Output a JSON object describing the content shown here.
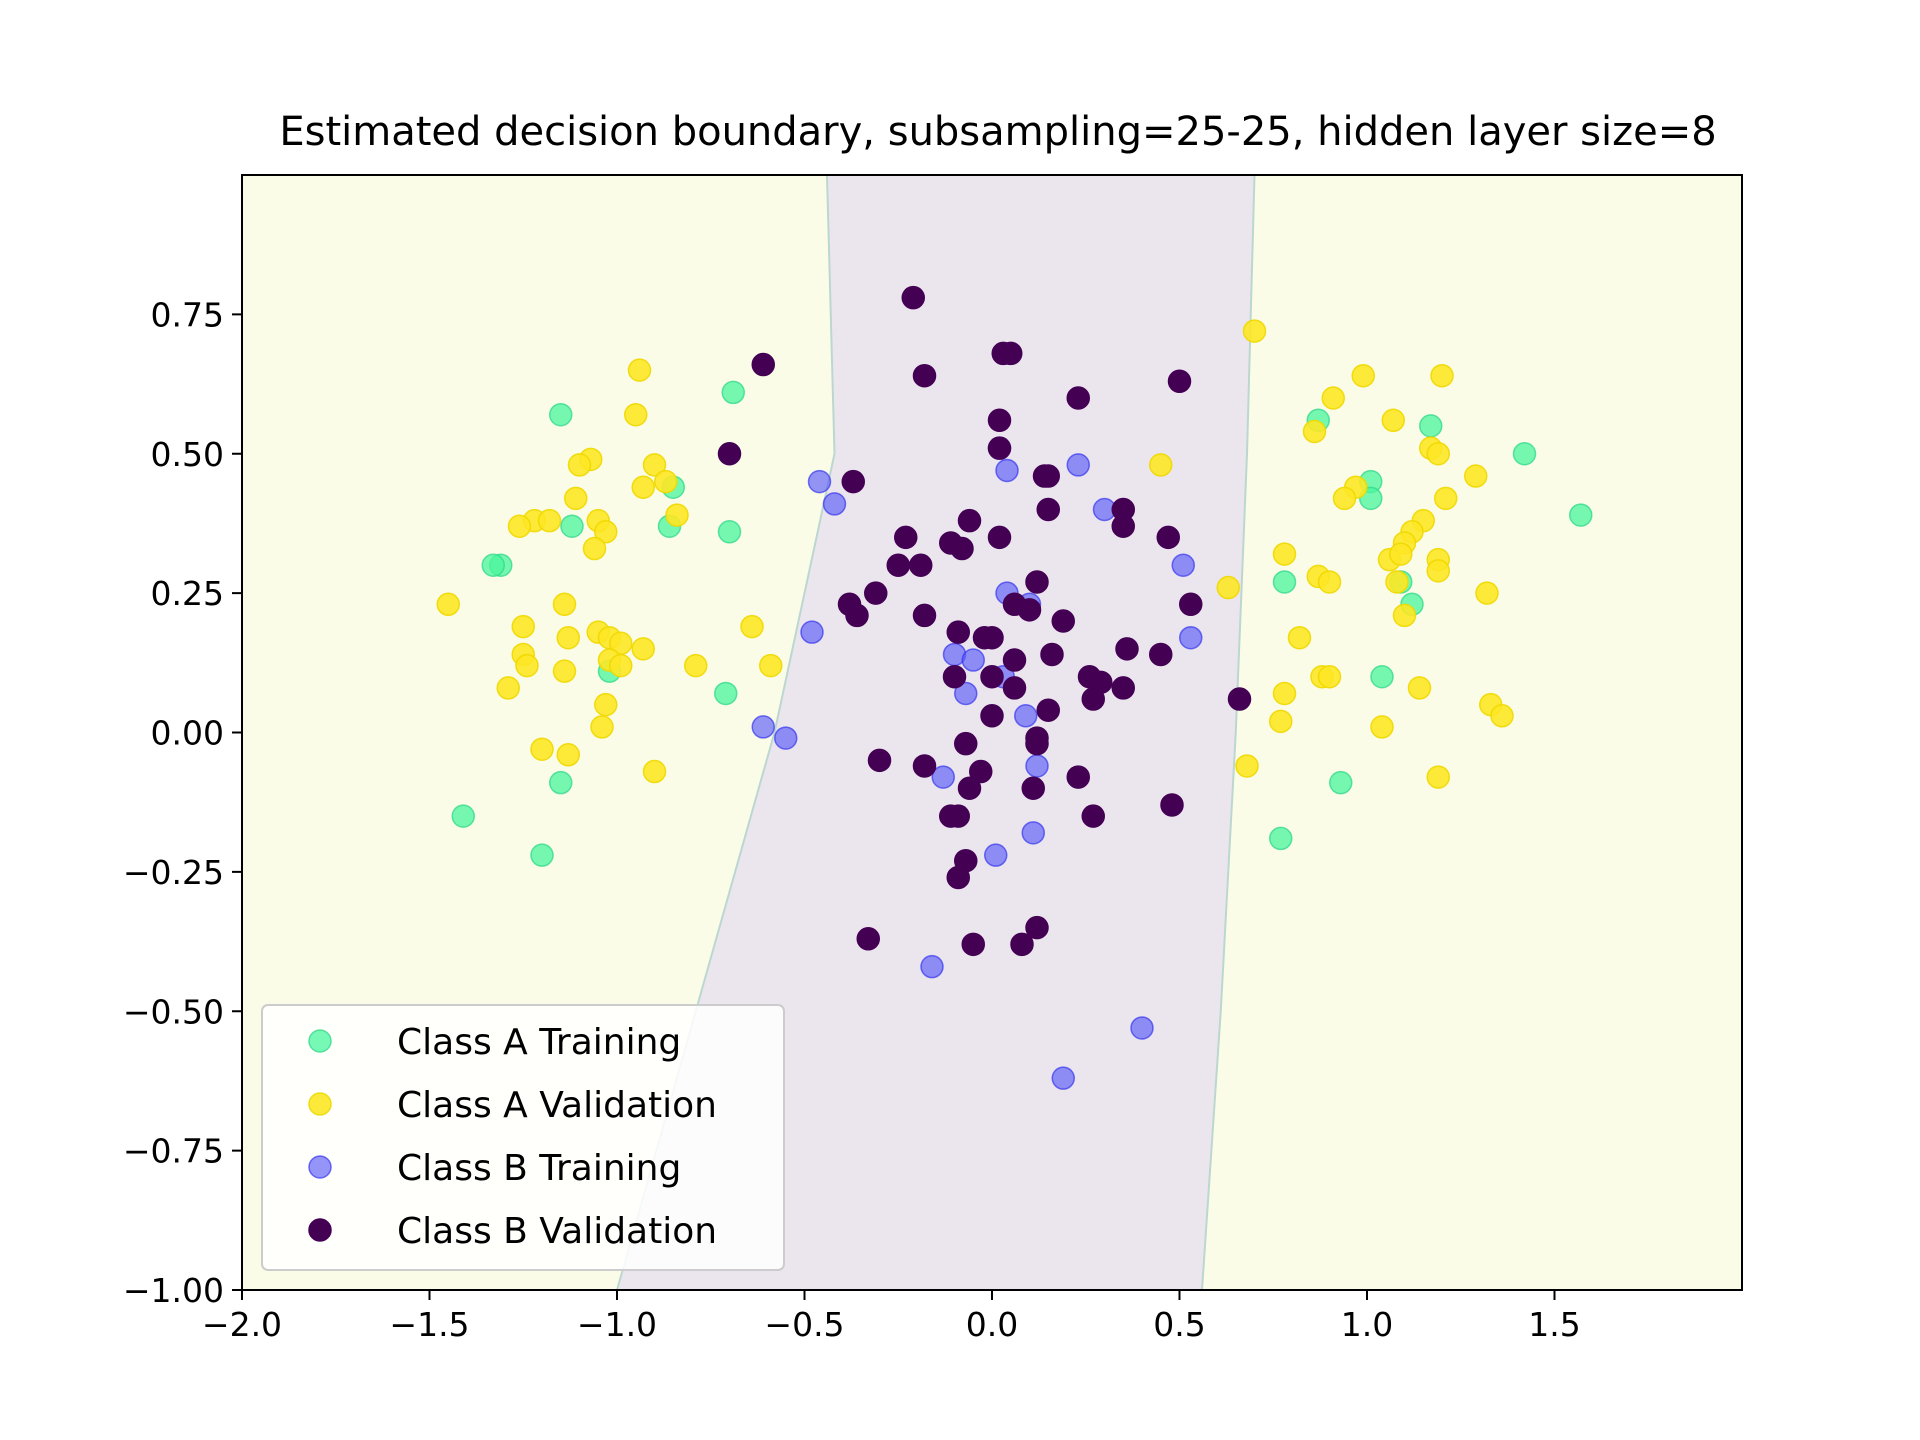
{
  "chart_data": {
    "type": "scatter",
    "title": "Estimated decision boundary, subsampling=25-25, hidden layer size=8",
    "xlabel": "",
    "ylabel": "",
    "xlim": [
      -2.0,
      2.0
    ],
    "ylim": [
      -1.0,
      1.0
    ],
    "x_ticks": [
      {
        "value": -2.0,
        "label": "−2.0"
      },
      {
        "value": -1.5,
        "label": "−1.5"
      },
      {
        "value": -1.0,
        "label": "−1.0"
      },
      {
        "value": -0.5,
        "label": "−0.5"
      },
      {
        "value": 0.0,
        "label": "0.0"
      },
      {
        "value": 0.5,
        "label": "0.5"
      },
      {
        "value": 1.0,
        "label": "1.0"
      },
      {
        "value": 1.5,
        "label": "1.5"
      }
    ],
    "y_ticks": [
      {
        "value": -1.0,
        "label": "−1.00"
      },
      {
        "value": -0.75,
        "label": "−0.75"
      },
      {
        "value": -0.5,
        "label": "−0.50"
      },
      {
        "value": -0.25,
        "label": "−0.25"
      },
      {
        "value": 0.0,
        "label": "0.00"
      },
      {
        "value": 0.25,
        "label": "0.25"
      },
      {
        "value": 0.5,
        "label": "0.50"
      },
      {
        "value": 0.75,
        "label": "0.75"
      }
    ],
    "grid": false,
    "legend_position": "lower-left",
    "background_regions": {
      "outer_color": "#fafce8",
      "inner_color": "#ebe6ee",
      "boundary_color": "#bcd7cf",
      "left_boundary": [
        [
          -1.0,
          -1.0
        ],
        [
          -0.58,
          0.0
        ],
        [
          -0.42,
          0.5
        ],
        [
          -0.44,
          1.0
        ]
      ],
      "right_boundary": [
        [
          0.56,
          -1.0
        ],
        [
          0.61,
          -0.5
        ],
        [
          0.65,
          0.0
        ],
        [
          0.68,
          0.5
        ],
        [
          0.7,
          1.0
        ]
      ]
    },
    "series": [
      {
        "name": "Class A Training",
        "color": "#4af59c",
        "edge_color": "#2fd88a",
        "opacity": 0.75,
        "points": [
          [
            -1.15,
            0.57
          ],
          [
            -0.69,
            0.61
          ],
          [
            -1.12,
            0.37
          ],
          [
            -0.85,
            0.44
          ],
          [
            -0.86,
            0.37
          ],
          [
            -0.7,
            0.36
          ],
          [
            -1.31,
            0.3
          ],
          [
            -1.33,
            0.3
          ],
          [
            -1.02,
            0.11
          ],
          [
            -0.71,
            0.07
          ],
          [
            -1.15,
            -0.09
          ],
          [
            -1.41,
            -0.15
          ],
          [
            -1.2,
            -0.22
          ],
          [
            0.87,
            0.56
          ],
          [
            1.17,
            0.55
          ],
          [
            1.42,
            0.5
          ],
          [
            1.57,
            0.39
          ],
          [
            1.01,
            0.45
          ],
          [
            1.01,
            0.42
          ],
          [
            0.78,
            0.27
          ],
          [
            1.09,
            0.27
          ],
          [
            1.12,
            0.23
          ],
          [
            1.04,
            0.1
          ],
          [
            0.93,
            -0.09
          ],
          [
            0.77,
            -0.19
          ]
        ]
      },
      {
        "name": "Class A Validation",
        "color": "#fde725",
        "edge_color": "#f0d800",
        "opacity": 0.9,
        "points": [
          [
            -0.94,
            0.65
          ],
          [
            -0.95,
            0.57
          ],
          [
            -1.07,
            0.49
          ],
          [
            -1.1,
            0.48
          ],
          [
            -0.9,
            0.48
          ],
          [
            -0.87,
            0.45
          ],
          [
            -0.93,
            0.44
          ],
          [
            -1.11,
            0.42
          ],
          [
            -0.84,
            0.39
          ],
          [
            -1.22,
            0.38
          ],
          [
            -1.18,
            0.38
          ],
          [
            -1.26,
            0.37
          ],
          [
            -1.05,
            0.38
          ],
          [
            -1.03,
            0.36
          ],
          [
            -1.06,
            0.33
          ],
          [
            -1.45,
            0.23
          ],
          [
            -1.14,
            0.23
          ],
          [
            -0.64,
            0.19
          ],
          [
            -1.25,
            0.19
          ],
          [
            -1.05,
            0.18
          ],
          [
            -1.13,
            0.17
          ],
          [
            -1.02,
            0.17
          ],
          [
            -0.99,
            0.16
          ],
          [
            -0.93,
            0.15
          ],
          [
            -1.02,
            0.13
          ],
          [
            -1.25,
            0.14
          ],
          [
            -1.24,
            0.12
          ],
          [
            -0.99,
            0.12
          ],
          [
            -1.14,
            0.11
          ],
          [
            -0.79,
            0.12
          ],
          [
            -0.59,
            0.12
          ],
          [
            -1.29,
            0.08
          ],
          [
            -1.03,
            0.05
          ],
          [
            -1.04,
            0.01
          ],
          [
            -1.2,
            -0.03
          ],
          [
            -1.13,
            -0.04
          ],
          [
            -0.9,
            -0.07
          ],
          [
            0.7,
            0.72
          ],
          [
            0.99,
            0.64
          ],
          [
            1.2,
            0.64
          ],
          [
            0.91,
            0.6
          ],
          [
            1.07,
            0.56
          ],
          [
            0.86,
            0.54
          ],
          [
            1.17,
            0.51
          ],
          [
            1.19,
            0.5
          ],
          [
            0.45,
            0.48
          ],
          [
            1.29,
            0.46
          ],
          [
            0.97,
            0.44
          ],
          [
            0.94,
            0.42
          ],
          [
            1.21,
            0.42
          ],
          [
            1.15,
            0.38
          ],
          [
            1.12,
            0.36
          ],
          [
            1.1,
            0.34
          ],
          [
            1.06,
            0.31
          ],
          [
            1.09,
            0.32
          ],
          [
            0.78,
            0.32
          ],
          [
            1.19,
            0.31
          ],
          [
            1.19,
            0.29
          ],
          [
            0.87,
            0.28
          ],
          [
            0.9,
            0.27
          ],
          [
            1.08,
            0.27
          ],
          [
            0.63,
            0.26
          ],
          [
            1.32,
            0.25
          ],
          [
            1.1,
            0.21
          ],
          [
            0.82,
            0.17
          ],
          [
            0.88,
            0.1
          ],
          [
            0.9,
            0.1
          ],
          [
            1.14,
            0.08
          ],
          [
            0.78,
            0.07
          ],
          [
            1.33,
            0.05
          ],
          [
            1.36,
            0.03
          ],
          [
            0.77,
            0.02
          ],
          [
            1.04,
            0.01
          ],
          [
            0.68,
            -0.06
          ],
          [
            1.19,
            -0.08
          ]
        ]
      },
      {
        "name": "Class B Training",
        "color": "#5a5af8",
        "edge_color": "#2d2df0",
        "opacity": 0.65,
        "points": [
          [
            0.02,
            0.51
          ],
          [
            0.04,
            0.47
          ],
          [
            0.23,
            0.48
          ],
          [
            -0.46,
            0.45
          ],
          [
            -0.42,
            0.41
          ],
          [
            0.3,
            0.4
          ],
          [
            0.51,
            0.3
          ],
          [
            0.04,
            0.25
          ],
          [
            0.1,
            0.23
          ],
          [
            -0.48,
            0.18
          ],
          [
            0.53,
            0.17
          ],
          [
            -0.1,
            0.14
          ],
          [
            -0.05,
            0.13
          ],
          [
            0.03,
            0.1
          ],
          [
            -0.07,
            0.07
          ],
          [
            -0.61,
            0.01
          ],
          [
            -0.55,
            -0.01
          ],
          [
            0.09,
            0.03
          ],
          [
            0.12,
            -0.06
          ],
          [
            -0.13,
            -0.08
          ],
          [
            0.11,
            -0.18
          ],
          [
            0.01,
            -0.22
          ],
          [
            -0.16,
            -0.42
          ],
          [
            0.4,
            -0.53
          ],
          [
            0.19,
            -0.62
          ]
        ]
      },
      {
        "name": "Class B Validation",
        "color": "#440154",
        "edge_color": "#440154",
        "opacity": 1.0,
        "points": [
          [
            -0.21,
            0.78
          ],
          [
            0.03,
            0.68
          ],
          [
            0.05,
            0.68
          ],
          [
            -0.61,
            0.66
          ],
          [
            -0.18,
            0.64
          ],
          [
            0.5,
            0.63
          ],
          [
            0.23,
            0.6
          ],
          [
            0.02,
            0.56
          ],
          [
            -0.7,
            0.5
          ],
          [
            0.02,
            0.51
          ],
          [
            0.14,
            0.46
          ],
          [
            0.15,
            0.46
          ],
          [
            -0.37,
            0.45
          ],
          [
            0.15,
            0.4
          ],
          [
            0.35,
            0.4
          ],
          [
            -0.06,
            0.38
          ],
          [
            0.35,
            0.37
          ],
          [
            -0.23,
            0.35
          ],
          [
            0.02,
            0.35
          ],
          [
            0.47,
            0.35
          ],
          [
            -0.11,
            0.34
          ],
          [
            -0.08,
            0.33
          ],
          [
            -0.25,
            0.3
          ],
          [
            -0.19,
            0.3
          ],
          [
            0.12,
            0.27
          ],
          [
            -0.31,
            0.25
          ],
          [
            0.06,
            0.23
          ],
          [
            0.53,
            0.23
          ],
          [
            -0.38,
            0.23
          ],
          [
            -0.36,
            0.21
          ],
          [
            -0.18,
            0.21
          ],
          [
            0.1,
            0.22
          ],
          [
            0.19,
            0.2
          ],
          [
            0.36,
            0.15
          ],
          [
            0.45,
            0.14
          ],
          [
            -0.09,
            0.18
          ],
          [
            0.16,
            0.14
          ],
          [
            -0.02,
            0.17
          ],
          [
            0.0,
            0.17
          ],
          [
            0.06,
            0.13
          ],
          [
            -0.1,
            0.1
          ],
          [
            0.0,
            0.1
          ],
          [
            0.26,
            0.1
          ],
          [
            0.06,
            0.08
          ],
          [
            0.29,
            0.09
          ],
          [
            0.35,
            0.08
          ],
          [
            0.27,
            0.06
          ],
          [
            0.66,
            0.06
          ],
          [
            0.15,
            0.04
          ],
          [
            0.0,
            0.03
          ],
          [
            0.12,
            -0.01
          ],
          [
            -0.07,
            -0.02
          ],
          [
            0.12,
            -0.02
          ],
          [
            -0.3,
            -0.05
          ],
          [
            -0.18,
            -0.06
          ],
          [
            -0.03,
            -0.07
          ],
          [
            0.23,
            -0.08
          ],
          [
            -0.06,
            -0.1
          ],
          [
            0.11,
            -0.1
          ],
          [
            0.48,
            -0.13
          ],
          [
            -0.11,
            -0.15
          ],
          [
            -0.09,
            -0.15
          ],
          [
            0.27,
            -0.15
          ],
          [
            -0.07,
            -0.23
          ],
          [
            -0.09,
            -0.26
          ],
          [
            0.12,
            -0.35
          ],
          [
            -0.33,
            -0.37
          ],
          [
            -0.05,
            -0.38
          ],
          [
            0.08,
            -0.38
          ]
        ]
      }
    ]
  }
}
